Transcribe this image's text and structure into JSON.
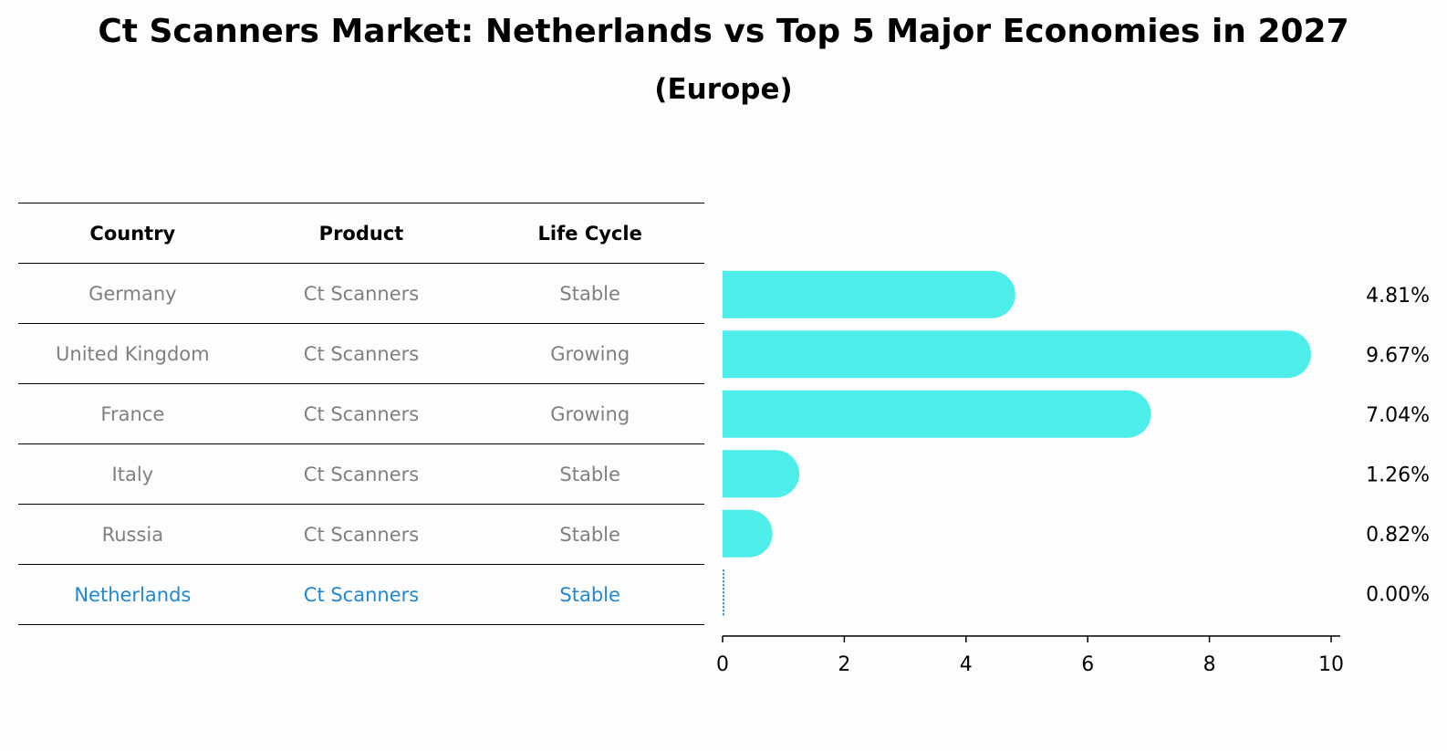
{
  "title": "Ct Scanners Market: Netherlands vs Top 5 Major Economies in 2027",
  "subtitle": "(Europe)",
  "table": {
    "headers": [
      "Country",
      "Product",
      "Life Cycle"
    ],
    "rows": [
      {
        "country": "Germany",
        "product": "Ct Scanners",
        "life_cycle": "Stable"
      },
      {
        "country": "United Kingdom",
        "product": "Ct Scanners",
        "life_cycle": "Growing"
      },
      {
        "country": "France",
        "product": "Ct Scanners",
        "life_cycle": "Growing"
      },
      {
        "country": "Italy",
        "product": "Ct Scanners",
        "life_cycle": "Stable"
      },
      {
        "country": "Russia",
        "product": "Ct Scanners",
        "life_cycle": "Stable"
      },
      {
        "country": "Netherlands",
        "product": "Ct Scanners",
        "life_cycle": "Stable"
      }
    ]
  },
  "colors": {
    "bar": "#4deeea",
    "highlight_text": "#1f88d6",
    "row_text": "#808080"
  },
  "chart_data": {
    "type": "bar",
    "orientation": "horizontal",
    "categories": [
      "Germany",
      "United Kingdom",
      "France",
      "Italy",
      "Russia",
      "Netherlands"
    ],
    "values": [
      4.81,
      9.67,
      7.04,
      1.26,
      0.82,
      0.0
    ],
    "value_labels": [
      "4.81%",
      "9.67%",
      "7.04%",
      "1.26%",
      "0.82%",
      "0.00%"
    ],
    "xlim": [
      0,
      10
    ],
    "xticks": [
      "0",
      "2",
      "4",
      "6",
      "8",
      "10"
    ],
    "grid": false
  }
}
